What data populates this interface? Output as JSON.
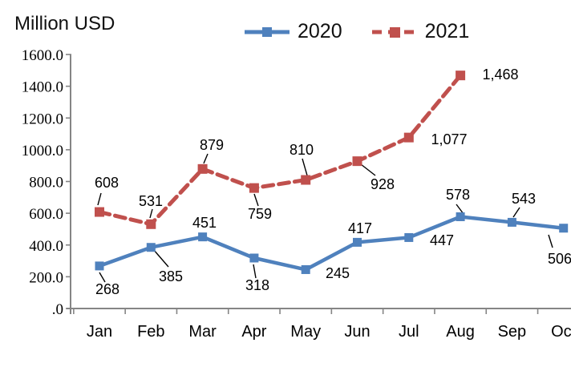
{
  "title": "Million USD",
  "legend": {
    "items": [
      {
        "label": "2020",
        "color": "#4F81BD",
        "dash": false
      },
      {
        "label": "2021",
        "color": "#C0504D",
        "dash": true
      }
    ]
  },
  "chart_data": {
    "type": "line",
    "title": "Million USD",
    "ylabel": "Million USD",
    "categories": [
      "Jan",
      "Feb",
      "Mar",
      "Apr",
      "May",
      "Jun",
      "Jul",
      "Aug",
      "Sep",
      "Oct"
    ],
    "series": [
      {
        "name": "2020",
        "color": "#4F81BD",
        "style": "solid",
        "values": [
          268,
          385,
          451,
          318,
          245,
          417,
          447,
          578,
          543,
          506
        ],
        "labels": [
          "268",
          "385",
          "451",
          "318",
          "245",
          "417",
          "447",
          "578",
          "543",
          "506"
        ]
      },
      {
        "name": "2021",
        "color": "#C0504D",
        "style": "dashed",
        "values": [
          608,
          531,
          879,
          759,
          810,
          928,
          1077,
          1468
        ],
        "labels": [
          "608",
          "531",
          "879",
          "759",
          "810",
          "928",
          "1,077",
          "1,468"
        ]
      }
    ],
    "ylim": [
      0,
      1600
    ],
    "ytick_step": 200,
    "ytick_labels": [
      "1600.0",
      "1400.0",
      "1200.0",
      "1000.0",
      "800.0",
      "600.0",
      "400.0",
      "200.0",
      ".0"
    ],
    "grid": false,
    "legend_position": "top-center",
    "axis_color": "#858585",
    "leader_line_color": "#000000",
    "notes_right_edge_clipped": "true"
  }
}
